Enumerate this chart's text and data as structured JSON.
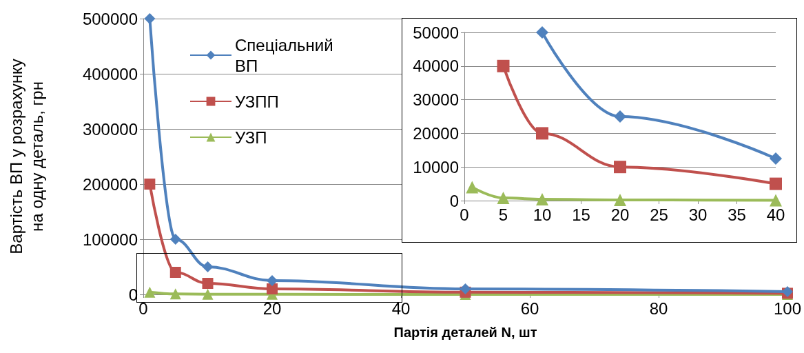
{
  "chart_data": [
    {
      "type": "line",
      "xlabel": "Партія деталей N, шт",
      "ylabel": "Вартість ВП у розрахунку на одну деталь, грн",
      "xlim": [
        0,
        100
      ],
      "xticks": [
        0,
        20,
        40,
        60,
        80,
        100
      ],
      "ylim": [
        0,
        500000
      ],
      "yticks": [
        0,
        100000,
        200000,
        300000,
        400000,
        500000
      ],
      "grid": "y",
      "legend": "top left",
      "x": [
        1,
        5,
        10,
        20,
        50,
        100
      ],
      "series": [
        {
          "name": "Спеціальний ВП",
          "color": "#4f81bd",
          "marker": "diamond",
          "values": [
            500000,
            100000,
            50000,
            25000,
            10000,
            5000
          ]
        },
        {
          "name": "УЗПП",
          "color": "#c0504d",
          "marker": "square",
          "values": [
            200000,
            40000,
            20000,
            10000,
            4000,
            2000
          ]
        },
        {
          "name": "УЗП",
          "color": "#9bbb59",
          "marker": "triangle",
          "values": [
            4000,
            800,
            400,
            200,
            80,
            40
          ]
        }
      ]
    },
    {
      "type": "line",
      "xlim": [
        0,
        40
      ],
      "xticks": [
        0,
        5,
        10,
        15,
        20,
        25,
        30,
        35,
        40
      ],
      "ylim": [
        0,
        50000
      ],
      "yticks": [
        0,
        10000,
        20000,
        30000,
        40000,
        50000
      ],
      "grid": "y",
      "legend": false,
      "series": [
        {
          "color": "#4f81bd",
          "marker": "diamond",
          "x": [
            10,
            20,
            40
          ],
          "values": [
            50000,
            25000,
            12500
          ]
        },
        {
          "color": "#c0504d",
          "marker": "square",
          "x": [
            5,
            10,
            20,
            40
          ],
          "values": [
            40000,
            20000,
            10000,
            5000
          ]
        },
        {
          "color": "#9bbb59",
          "marker": "triangle",
          "x": [
            1,
            5,
            10,
            20,
            40
          ],
          "values": [
            4000,
            800,
            400,
            200,
            100
          ]
        }
      ]
    }
  ]
}
